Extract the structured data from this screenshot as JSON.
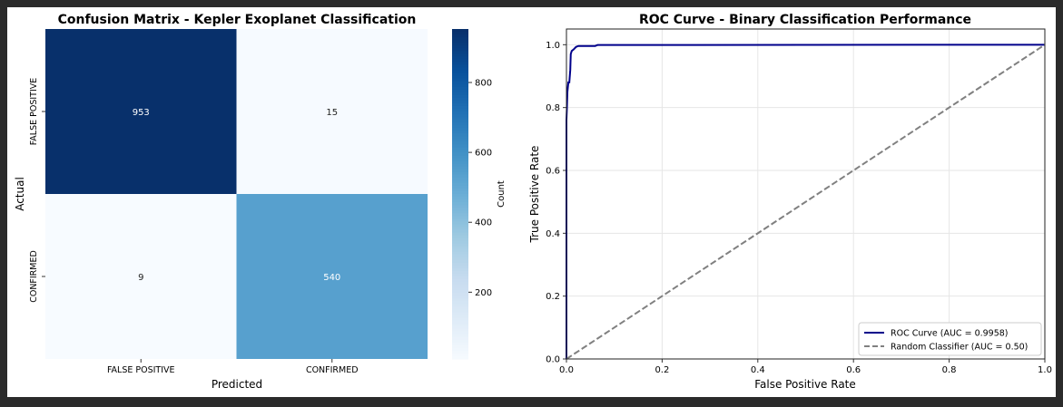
{
  "chart_data": [
    {
      "type": "heatmap",
      "title": "Confusion Matrix - Kepler Exoplanet Classification",
      "xlabel": "Predicted",
      "ylabel": "Actual",
      "x_categories": [
        "FALSE POSITIVE",
        "CONFIRMED"
      ],
      "y_categories": [
        "FALSE POSITIVE",
        "CONFIRMED"
      ],
      "values": [
        [
          953,
          15
        ],
        [
          9,
          540
        ]
      ],
      "colormap": "Blues",
      "colorbar": {
        "label": "Count",
        "range": [
          9,
          953
        ],
        "ticks": [
          200,
          400,
          600,
          800
        ]
      }
    },
    {
      "type": "line",
      "title": "ROC Curve - Binary Classification Performance",
      "xlabel": "False Positive Rate",
      "ylabel": "True Positive Rate",
      "xlim": [
        0,
        1
      ],
      "ylim": [
        0,
        1.05
      ],
      "xticks": [
        "0.0",
        "0.2",
        "0.4",
        "0.6",
        "0.8",
        "1.0"
      ],
      "yticks": [
        "0.0",
        "0.2",
        "0.4",
        "0.6",
        "0.8",
        "1.0"
      ],
      "grid": true,
      "legend_position": "lower-right",
      "series": [
        {
          "name": "ROC Curve (AUC = 0.9958)",
          "color": "#00008b",
          "style": "solid",
          "x": [
            0,
            0,
            0.001,
            0.002,
            0.004,
            0.006,
            0.008,
            0.009,
            0.011,
            0.015,
            0.02,
            0.025,
            0.06,
            0.065,
            1
          ],
          "y": [
            0,
            0.76,
            0.8,
            0.85,
            0.88,
            0.88,
            0.92,
            0.97,
            0.98,
            0.985,
            0.993,
            0.996,
            0.996,
            0.999,
            1
          ]
        },
        {
          "name": "Random Classifier (AUC = 0.50)",
          "color": "#808080",
          "style": "dashed",
          "x": [
            0,
            1
          ],
          "y": [
            0,
            1
          ]
        }
      ]
    }
  ]
}
